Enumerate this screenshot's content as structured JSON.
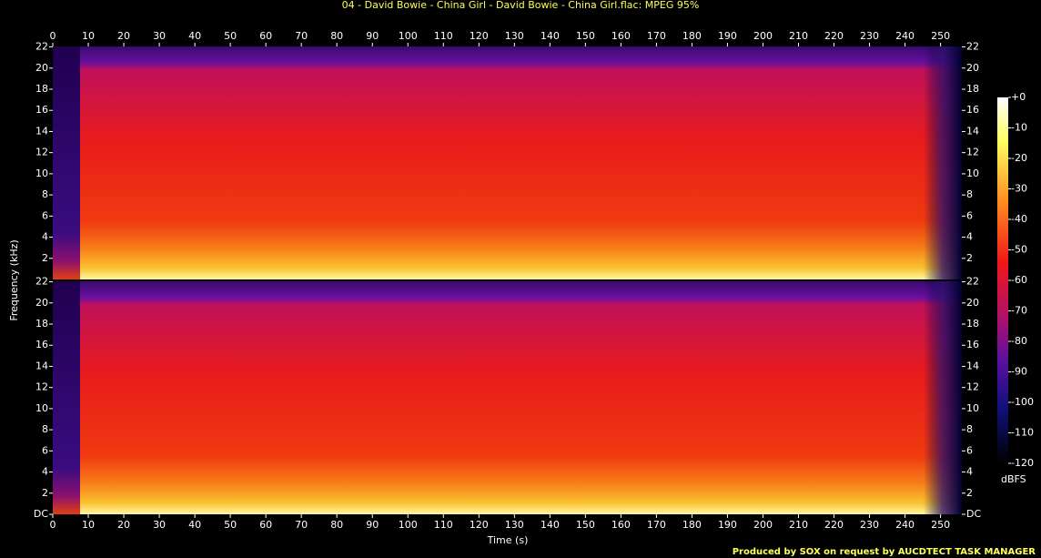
{
  "chart_data": {
    "type": "spectrogram",
    "title": "04 - David Bowie - China Girl - David Bowie - China Girl.flac: MPEG 95%",
    "xlabel": "Time (s)",
    "ylabel": "Frequency (kHz)",
    "xlim": [
      0,
      256
    ],
    "xticks": [
      0,
      10,
      20,
      30,
      40,
      50,
      60,
      70,
      80,
      90,
      100,
      110,
      120,
      130,
      140,
      150,
      160,
      170,
      180,
      190,
      200,
      210,
      220,
      230,
      240,
      250
    ],
    "ylim": [
      0,
      22.05
    ],
    "panels": [
      {
        "yticks": [
          2,
          4,
          6,
          8,
          10,
          12,
          14,
          16,
          18,
          20,
          22
        ]
      },
      {
        "yticks": [
          {
            "value": 0,
            "label": "DC"
          },
          2,
          4,
          6,
          8,
          10,
          12,
          14,
          16,
          18,
          20,
          22
        ]
      }
    ],
    "colorbar": {
      "label": "dBFS",
      "lim": [
        -120,
        0
      ],
      "ticks": [
        {
          "value": 0,
          "label": "+0"
        },
        -10,
        -20,
        -30,
        -40,
        -50,
        -60,
        -70,
        -80,
        -90,
        -100,
        -110,
        -120
      ]
    },
    "footer": "Produced by SOX on request by AUCDTECT TASK MANAGER"
  }
}
